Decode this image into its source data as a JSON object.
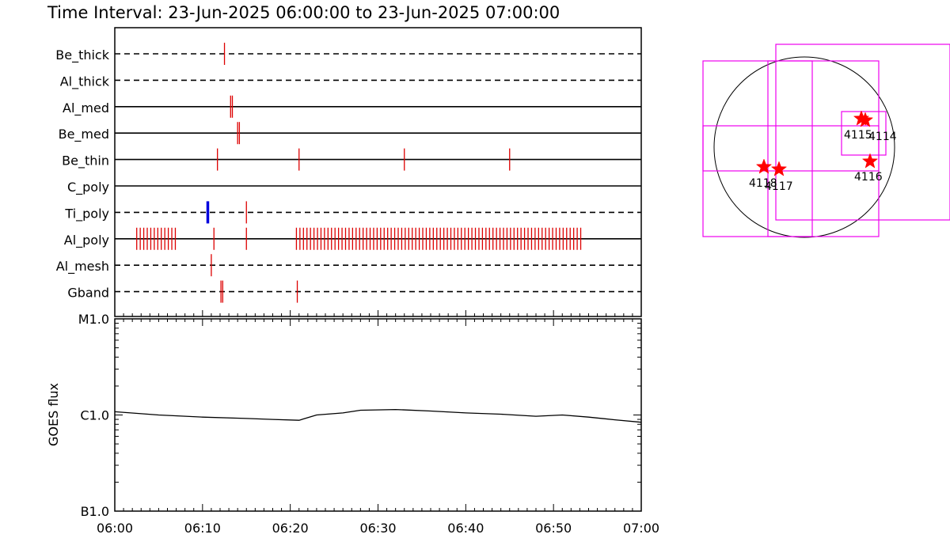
{
  "title": "Time Interval: 23-Jun-2025 06:00:00 to 23-Jun-2025 07:00:00",
  "colors": {
    "event": "#dd0000",
    "event_alt": "#0000dd",
    "box": "#ee00ee",
    "star": "#ff0000",
    "line": "#000000"
  },
  "chart_data": [
    {
      "type": "timeline",
      "xlim": [
        "06:00",
        "07:00"
      ],
      "filters": [
        {
          "name": "Be_thick",
          "line_style": "dashed",
          "events": [
            12.5
          ]
        },
        {
          "name": "Al_thick",
          "line_style": "dashed",
          "events": []
        },
        {
          "name": "Al_med",
          "line_style": "solid",
          "events": [
            13.2,
            13.4
          ]
        },
        {
          "name": "Be_med",
          "line_style": "solid",
          "events": [
            14.0,
            14.2
          ]
        },
        {
          "name": "Be_thin",
          "line_style": "solid",
          "events": [
            11.7,
            21.0,
            33.0,
            45.0
          ]
        },
        {
          "name": "C_poly",
          "line_style": "solid",
          "events": []
        },
        {
          "name": "Ti_poly",
          "line_style": "dashed",
          "events": [
            15.0
          ],
          "highlight_events": [
            10.6
          ]
        },
        {
          "name": "Al_poly",
          "line_style": "solid",
          "events": [
            2.5,
            2.9,
            3.3,
            3.7,
            4.1,
            4.5,
            4.9,
            5.3,
            5.7,
            6.1,
            6.5,
            6.9,
            11.3,
            15.0,
            20.7,
            21.1,
            21.5,
            21.9,
            22.3,
            22.7,
            23.1,
            23.5,
            23.9,
            24.3,
            24.7,
            25.1,
            25.5,
            25.9,
            26.3,
            26.7,
            27.1,
            27.5,
            27.9,
            28.3,
            28.7,
            29.1,
            29.5,
            29.9,
            30.3,
            30.7,
            31.1,
            31.5,
            31.9,
            32.3,
            32.7,
            33.1,
            33.5,
            33.9,
            34.3,
            34.7,
            35.1,
            35.5,
            35.9,
            36.3,
            36.7,
            37.1,
            37.5,
            37.9,
            38.3,
            38.7,
            39.1,
            39.5,
            39.9,
            40.3,
            40.7,
            41.1,
            41.5,
            41.9,
            42.3,
            42.7,
            43.1,
            43.5,
            43.9,
            44.3,
            44.7,
            45.1,
            45.5,
            45.9,
            46.3,
            46.7,
            47.1,
            47.5,
            47.9,
            48.3,
            48.7,
            49.1,
            49.5,
            49.9,
            50.3,
            50.7,
            51.1,
            51.5,
            51.9,
            52.3,
            52.7,
            53.1
          ]
        },
        {
          "name": "Al_mesh",
          "line_style": "dashed",
          "events": [
            11.0
          ]
        },
        {
          "name": "Gband",
          "line_style": "dashed",
          "events": [
            12.1,
            12.3,
            20.8
          ]
        }
      ]
    },
    {
      "type": "line",
      "ylabel": "GOES flux",
      "yscale": "log",
      "ylim": [
        1e-07,
        1e-05
      ],
      "yticks": [
        {
          "value": 1e-07,
          "label": "B1.0"
        },
        {
          "value": 1e-06,
          "label": "C1.0"
        },
        {
          "value": 1e-05,
          "label": "M1.0"
        }
      ],
      "xticks": [
        "06:00",
        "06:10",
        "06:20",
        "06:30",
        "06:40",
        "06:50",
        "07:00"
      ],
      "xlim": [
        "06:00",
        "07:00"
      ],
      "series": [
        {
          "x": [
            "06:00",
            "06:05",
            "06:10",
            "06:15",
            "06:18",
            "06:21",
            "06:23",
            "06:26",
            "06:28",
            "06:32",
            "06:36",
            "06:40",
            "06:44",
            "06:48",
            "06:51",
            "06:54",
            "06:57",
            "07:00"
          ],
          "y": [
            1.08e-06,
            1e-06,
            9.5e-07,
            9.2e-07,
            9e-07,
            8.8e-07,
            1e-06,
            1.05e-06,
            1.12e-06,
            1.14e-06,
            1.1e-06,
            1.05e-06,
            1.02e-06,
            9.7e-07,
            1e-06,
            9.5e-07,
            8.9e-07,
            8.4e-07
          ]
        }
      ]
    },
    {
      "type": "scatter",
      "kind": "solar disk locator",
      "points": [
        {
          "label": "4115"
        },
        {
          "label": "4114"
        },
        {
          "label": "4116"
        },
        {
          "label": "4118"
        },
        {
          "label": "4117"
        }
      ]
    }
  ]
}
